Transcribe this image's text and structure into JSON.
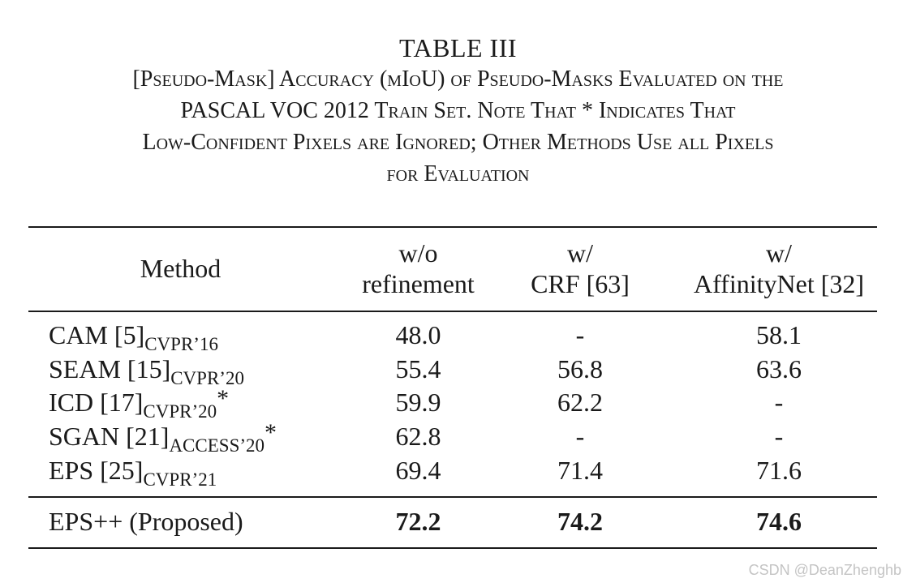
{
  "caption": {
    "label": "TABLE III",
    "lines": [
      "[Pseudo-Mask] Accuracy (mIoU) of Pseudo-Masks Evaluated on the",
      "PASCAL VOC 2012 Train Set. Note That * Indicates That",
      "Low-Confident Pixels are Ignored; Other Methods Use all Pixels",
      "for Evaluation"
    ]
  },
  "table": {
    "headers": {
      "method": "Method",
      "col1": [
        "w/o",
        "refinement"
      ],
      "col2": [
        "w/",
        "CRF [63]"
      ],
      "col3": [
        "w/",
        "AffinityNet [32]"
      ]
    },
    "rows": [
      {
        "method": "CAM [5]",
        "venue": "CVPR’16",
        "star": "",
        "values": [
          "48.0",
          "-",
          "58.1"
        ]
      },
      {
        "method": "SEAM [15]",
        "venue": "CVPR’20",
        "star": "",
        "values": [
          "55.4",
          "56.8",
          "63.6"
        ]
      },
      {
        "method": "ICD [17]",
        "venue": "CVPR’20",
        "star": "*",
        "values": [
          "59.9",
          "62.2",
          "-"
        ]
      },
      {
        "method": "SGAN [21]",
        "venue": "ACCESS’20",
        "star": "*",
        "values": [
          "62.8",
          "-",
          "-"
        ]
      },
      {
        "method": "EPS [25]",
        "venue": "CVPR’21",
        "star": "",
        "values": [
          "69.4",
          "71.4",
          "71.6"
        ]
      }
    ],
    "proposed": {
      "method": "EPS++ (Proposed)",
      "values": [
        "72.2",
        "74.2",
        "74.6"
      ]
    }
  },
  "watermark": "CSDN @DeanZhenghb"
}
